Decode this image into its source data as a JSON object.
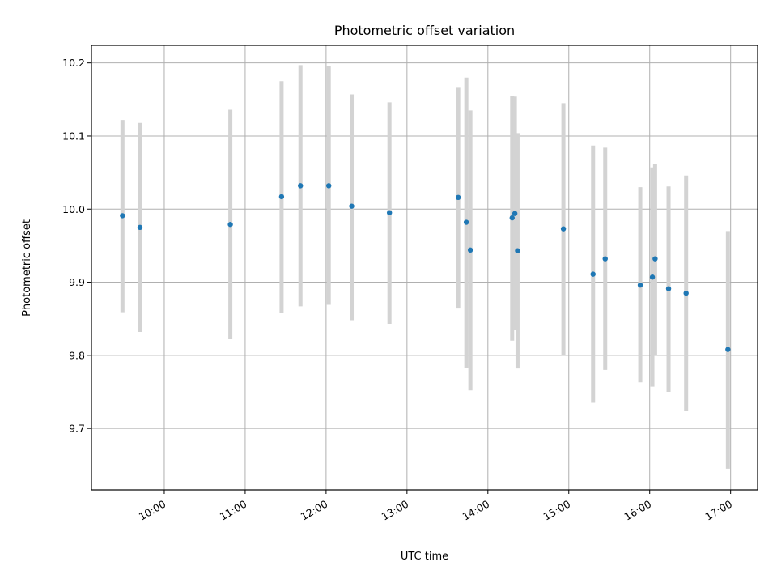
{
  "chart_data": {
    "type": "scatter",
    "title": "Photometric offset variation",
    "xlabel": "UTC time",
    "ylabel": "Photometric offset",
    "xlim": [
      "09:06",
      "17:20"
    ],
    "ylim": [
      9.616,
      10.224
    ],
    "grid": true,
    "xticks": [
      "10:00",
      "11:00",
      "12:00",
      "13:00",
      "14:00",
      "15:00",
      "16:00",
      "17:00"
    ],
    "yticks": [
      "9.7",
      "9.8",
      "9.9",
      "10.0",
      "10.1",
      "10.2"
    ],
    "marker_color": "#1f77b4",
    "errorbar_color": "#d3d3d3",
    "points": [
      {
        "t": "09:29",
        "y": 9.991,
        "lo": 9.859,
        "hi": 10.122
      },
      {
        "t": "09:42",
        "y": 9.975,
        "lo": 9.832,
        "hi": 10.118
      },
      {
        "t": "10:49",
        "y": 9.979,
        "lo": 9.822,
        "hi": 10.136
      },
      {
        "t": "11:27",
        "y": 10.017,
        "lo": 9.858,
        "hi": 10.175
      },
      {
        "t": "11:41",
        "y": 10.032,
        "lo": 9.867,
        "hi": 10.197
      },
      {
        "t": "12:02",
        "y": 10.032,
        "lo": 9.869,
        "hi": 10.196
      },
      {
        "t": "12:19",
        "y": 10.004,
        "lo": 9.848,
        "hi": 10.157
      },
      {
        "t": "12:47",
        "y": 9.995,
        "lo": 9.843,
        "hi": 10.146
      },
      {
        "t": "13:38",
        "y": 10.016,
        "lo": 9.865,
        "hi": 10.166
      },
      {
        "t": "13:44",
        "y": 9.982,
        "lo": 9.783,
        "hi": 10.18
      },
      {
        "t": "13:47",
        "y": 9.944,
        "lo": 9.752,
        "hi": 10.135
      },
      {
        "t": "14:18",
        "y": 9.988,
        "lo": 9.82,
        "hi": 10.155
      },
      {
        "t": "14:20",
        "y": 9.994,
        "lo": 9.835,
        "hi": 10.154
      },
      {
        "t": "14:22",
        "y": 9.943,
        "lo": 9.782,
        "hi": 10.104
      },
      {
        "t": "14:56",
        "y": 9.973,
        "lo": 9.801,
        "hi": 10.145
      },
      {
        "t": "15:18",
        "y": 9.911,
        "lo": 9.735,
        "hi": 10.087
      },
      {
        "t": "15:27",
        "y": 9.932,
        "lo": 9.78,
        "hi": 10.084
      },
      {
        "t": "15:53",
        "y": 9.896,
        "lo": 9.763,
        "hi": 10.03
      },
      {
        "t": "16:02",
        "y": 9.907,
        "lo": 9.757,
        "hi": 10.057
      },
      {
        "t": "16:04",
        "y": 9.932,
        "lo": 9.801,
        "hi": 10.062
      },
      {
        "t": "16:14",
        "y": 9.891,
        "lo": 9.75,
        "hi": 10.031
      },
      {
        "t": "16:27",
        "y": 9.885,
        "lo": 9.724,
        "hi": 10.046
      },
      {
        "t": "16:58",
        "y": 9.808,
        "lo": 9.645,
        "hi": 9.97
      }
    ]
  }
}
